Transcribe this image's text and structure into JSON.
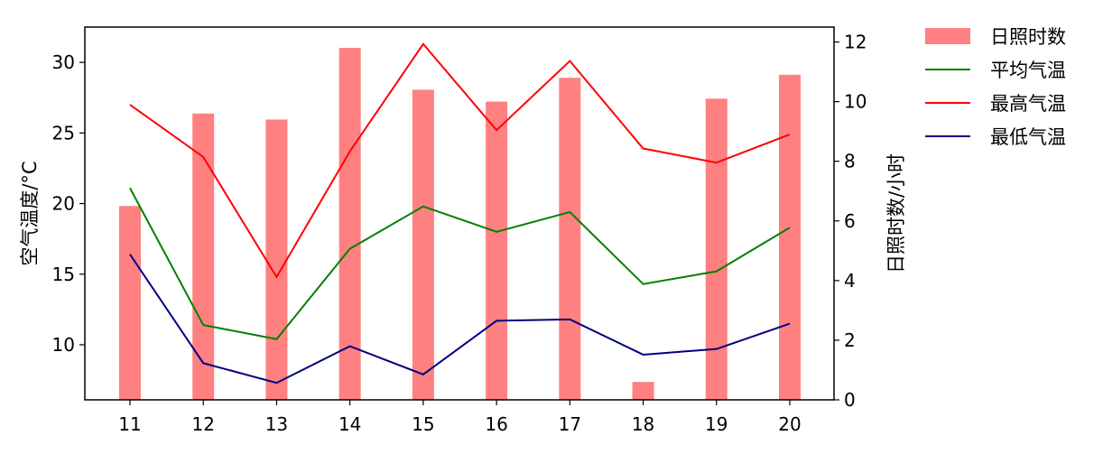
{
  "chart_data": {
    "type": "bar+line",
    "categories": [
      "11",
      "12",
      "13",
      "14",
      "15",
      "16",
      "17",
      "18",
      "19",
      "20"
    ],
    "bar_series": {
      "name": "日照时数",
      "axis": "right",
      "color": "#ff8080",
      "values": [
        6.5,
        9.6,
        9.4,
        11.8,
        10.4,
        10.0,
        10.8,
        0.6,
        10.1,
        10.9
      ]
    },
    "line_series": [
      {
        "name": "平均气温",
        "color": "#008000",
        "values": [
          21.1,
          11.4,
          10.4,
          16.8,
          19.8,
          18.0,
          19.4,
          14.3,
          15.2,
          18.3
        ]
      },
      {
        "name": "最高气温",
        "color": "#ff0000",
        "values": [
          27.0,
          23.3,
          14.8,
          23.7,
          31.3,
          25.2,
          30.1,
          23.9,
          22.9,
          24.9
        ]
      },
      {
        "name": "最低气温",
        "color": "#000080",
        "values": [
          16.4,
          8.7,
          7.3,
          9.9,
          7.9,
          11.7,
          11.8,
          9.3,
          9.7,
          11.5
        ]
      }
    ],
    "ylabel_left": "空气温度/°C",
    "ylabel_right": "日照时数/小时",
    "ylim_left": [
      6.1,
      32.5
    ],
    "yticks_left": [
      "10",
      "15",
      "20",
      "25",
      "30"
    ],
    "ylim_right": [
      0,
      12.5
    ],
    "yticks_right": [
      "0",
      "2",
      "4",
      "6",
      "8",
      "10",
      "12"
    ],
    "grid": false,
    "legend": {
      "placement": "outside-top-right",
      "entries": [
        "日照时数",
        "平均气温",
        "最高气温",
        "最低气温"
      ]
    }
  }
}
